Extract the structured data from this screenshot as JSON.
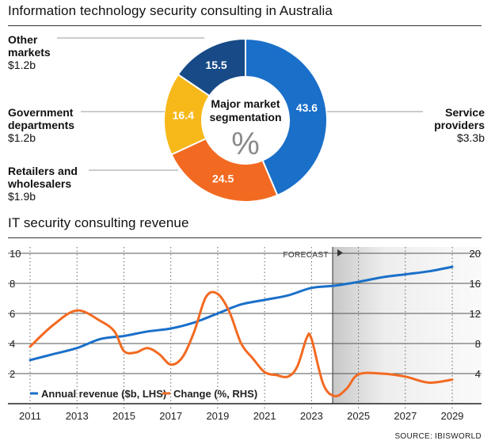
{
  "titles": {
    "donut_title": "Information technology security consulting in Australia",
    "line_title": "IT security consulting revenue"
  },
  "source": "SOURCE: IBISWORLD",
  "chart_data": [
    {
      "type": "pie",
      "style": "donut",
      "center_label": "Major market segmentation",
      "center_unit": "%",
      "slices": [
        {
          "name": "Service providers",
          "value": 43.6,
          "amount": "$3.3b",
          "color": "#1a6fc9"
        },
        {
          "name": "Retailers and wholesalers",
          "value": 24.5,
          "amount": "$1.9b",
          "color": "#f26a21"
        },
        {
          "name": "Government departments",
          "value": 16.4,
          "amount": "$1.2b",
          "color": "#f7b81a"
        },
        {
          "name": "Other markets",
          "value": 15.5,
          "amount": "$1.2b",
          "color": "#174a86"
        }
      ]
    },
    {
      "type": "line",
      "x_ticks": [
        "2011",
        "2013",
        "2015",
        "2017",
        "2019",
        "2021",
        "2023",
        "2025",
        "2027",
        "2029"
      ],
      "xlim": [
        2011,
        2029.2
      ],
      "ylim_left": [
        0,
        10
      ],
      "ylim_right": [
        0,
        20
      ],
      "y_ticks_left": [
        "2",
        "4",
        "6",
        "8",
        "10"
      ],
      "y_ticks_right": [
        "4",
        "8",
        "12",
        "16",
        "20"
      ],
      "forecast_label": "FORECAST",
      "forecast_start": 2023.9,
      "series": [
        {
          "name": "Annual revenue ($b, LHS)",
          "axis": "left",
          "color": "#1a6fc9",
          "x": [
            2011,
            2012,
            2013,
            2014,
            2015,
            2016,
            2017,
            2018,
            2019,
            2020,
            2021,
            2022,
            2023,
            2024,
            2025,
            2026,
            2027,
            2028,
            2029
          ],
          "y": [
            2.9,
            3.3,
            3.7,
            4.3,
            4.5,
            4.8,
            5.0,
            5.4,
            6.0,
            6.6,
            6.9,
            7.2,
            7.7,
            7.85,
            8.1,
            8.4,
            8.6,
            8.8,
            9.1
          ]
        },
        {
          "name": "Change (%, RHS)",
          "axis": "right",
          "color": "#f26a21",
          "x": [
            2011,
            2012,
            2013,
            2014,
            2014.6,
            2015,
            2015.5,
            2016,
            2016.5,
            2017,
            2017.5,
            2018,
            2018.5,
            2019,
            2019.5,
            2020,
            2020.5,
            2021,
            2021.5,
            2022,
            2022.4,
            2022.8,
            2023,
            2023.5,
            2024,
            2024.5,
            2025,
            2026,
            2027,
            2028,
            2029
          ],
          "y": [
            7.6,
            10.5,
            12.4,
            11.0,
            9.6,
            7.0,
            6.8,
            7.4,
            6.6,
            5.2,
            6.2,
            9.6,
            14.2,
            14.6,
            12.2,
            8.0,
            6.0,
            4.2,
            3.8,
            3.6,
            5.0,
            8.8,
            8.6,
            2.6,
            1.0,
            2.0,
            3.9,
            4.0,
            3.6,
            2.8,
            3.2
          ]
        }
      ]
    }
  ]
}
